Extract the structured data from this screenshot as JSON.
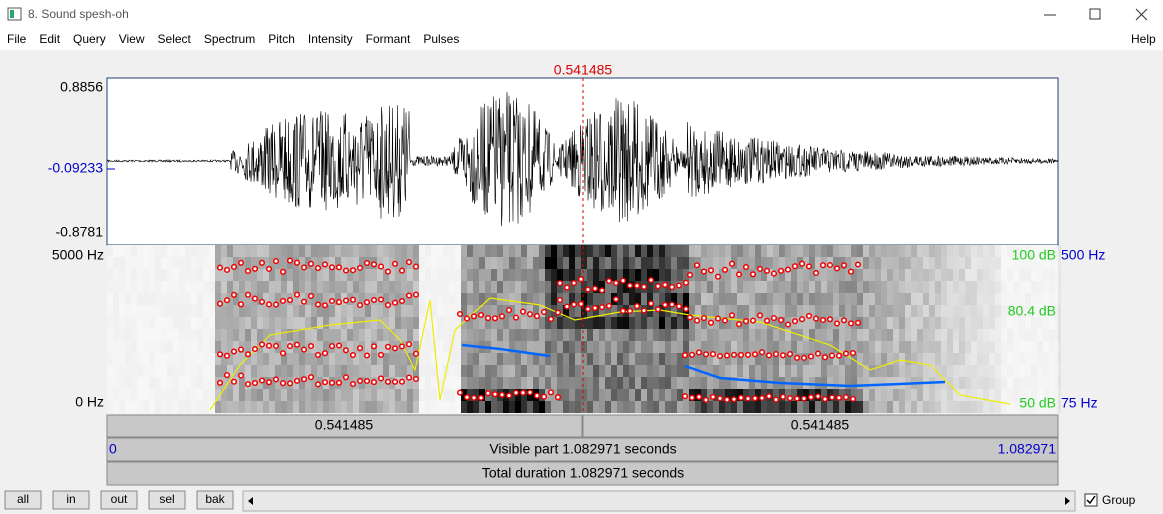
{
  "window": {
    "title": "8. Sound spesh-oh",
    "menu": [
      "File",
      "Edit",
      "Query",
      "View",
      "Select",
      "Spectrum",
      "Pitch",
      "Intensity",
      "Formant",
      "Pulses"
    ],
    "help": "Help"
  },
  "editor": {
    "cursor_time": "0.541485",
    "wave_top": "0.8856",
    "wave_cursor": "-0.09233",
    "wave_bottom": "-0.8781",
    "spec_top": "5000 Hz",
    "spec_bottom": "0 Hz",
    "intensity_top": "100 dB",
    "pitch_top": "500 Hz",
    "intensity_cursor": "80.4 dB",
    "intensity_bottom": "50 dB",
    "pitch_bottom": "75 Hz",
    "left_half": "0.541485",
    "right_half": "0.541485",
    "visible_start": "0",
    "visible_part": "Visible part 1.082971 seconds",
    "visible_end": "1.082971",
    "total": "Total duration 1.082971 seconds"
  },
  "buttons": [
    "all",
    "in",
    "out",
    "sel",
    "bak"
  ],
  "group": "Group"
}
